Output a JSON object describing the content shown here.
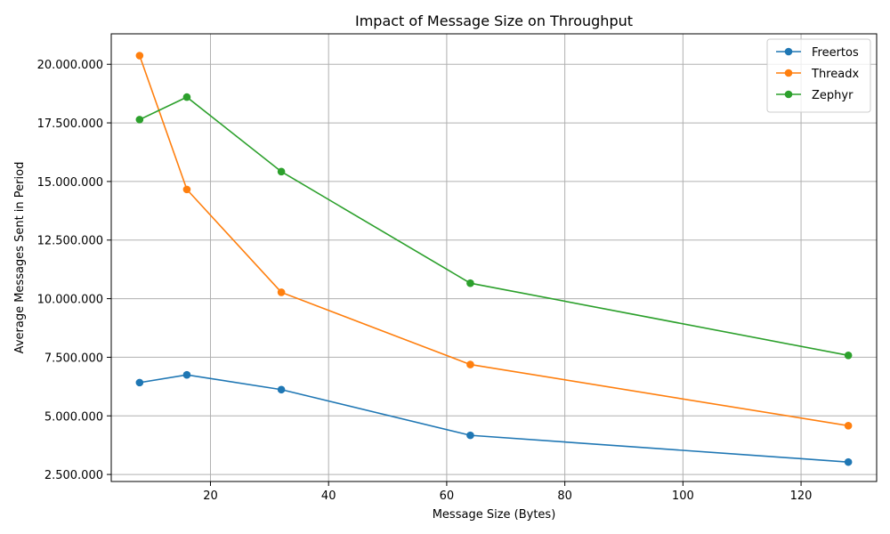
{
  "chart_data": {
    "type": "line",
    "title": "Impact of Message Size on Throughput",
    "xlabel": "Message Size (Bytes)",
    "ylabel": "Average Messages Sent in Period",
    "x": [
      8,
      16,
      32,
      64,
      128
    ],
    "xlim": [
      3.2,
      132.8
    ],
    "ylim": [
      2200000,
      21300000
    ],
    "xticks": [
      20,
      40,
      60,
      80,
      100,
      120
    ],
    "xtick_labels": [
      "20",
      "40",
      "60",
      "80",
      "100",
      "120"
    ],
    "yticks": [
      2500000,
      5000000,
      7500000,
      10000000,
      12500000,
      15000000,
      17500000,
      20000000
    ],
    "ytick_labels": [
      "2.500.000",
      "5.000.000",
      "7.500.000",
      "10.000.000",
      "12.500.000",
      "15.000.000",
      "17.500.000",
      "20.000.000"
    ],
    "grid": true,
    "legend_position": "top-right",
    "series": [
      {
        "name": "Freertos",
        "color": "#1f77b4",
        "values": [
          6420000,
          6750000,
          6120000,
          4170000,
          3030000
        ]
      },
      {
        "name": "Threadx",
        "color": "#ff7f0e",
        "values": [
          20370000,
          14660000,
          10270000,
          7190000,
          4580000
        ]
      },
      {
        "name": "Zephyr",
        "color": "#2ca02c",
        "values": [
          17640000,
          18600000,
          15420000,
          10660000,
          7580000
        ]
      }
    ]
  }
}
